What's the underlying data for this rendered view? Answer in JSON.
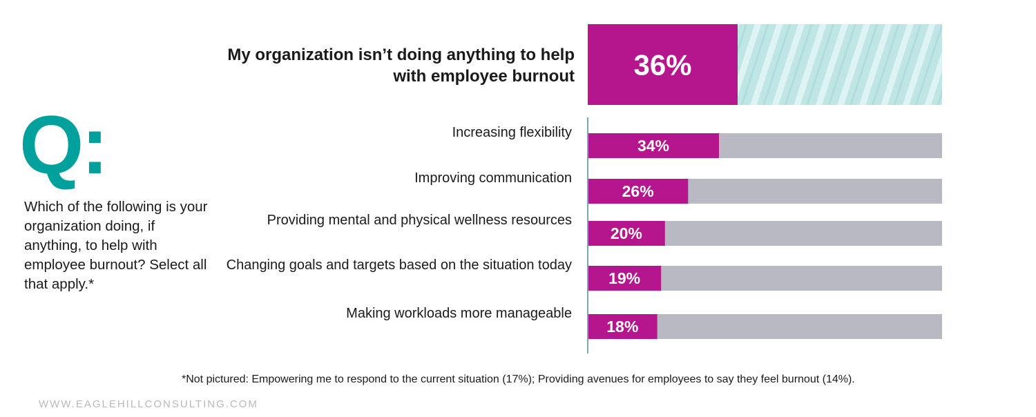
{
  "question": {
    "mark": "Q:",
    "text": "Which of the following is your organization doing, if anything, to help with employee burnout? Select all that apply.*"
  },
  "highlight": {
    "label": "My organization isn’t doing anything to help with employee burnout",
    "value": 36,
    "value_label": "36%"
  },
  "footnote": "*Not pictured: Empowering me to respond to the current situation (17%); Providing avenues for employees to say they feel burnout (14%).",
  "website": "WWW.EAGLEHILLCONSULTING.COM",
  "colors": {
    "bar": "#b5168e",
    "track": "#b8b9c2",
    "accent": "#00a19c",
    "highlight_track": "#bfe5e5"
  },
  "chart_data": {
    "type": "bar",
    "orientation": "horizontal",
    "categories": [
      "Increasing flexibility",
      "Improving communication",
      "Providing mental and physical wellness resources",
      "Changing goals and targets based on the situation today",
      "Making workloads more manageable"
    ],
    "values": [
      34,
      26,
      20,
      19,
      18
    ],
    "value_labels": [
      "34%",
      "26%",
      "20%",
      "19%",
      "18%"
    ],
    "xlim": [
      0,
      100
    ],
    "grid": false
  }
}
